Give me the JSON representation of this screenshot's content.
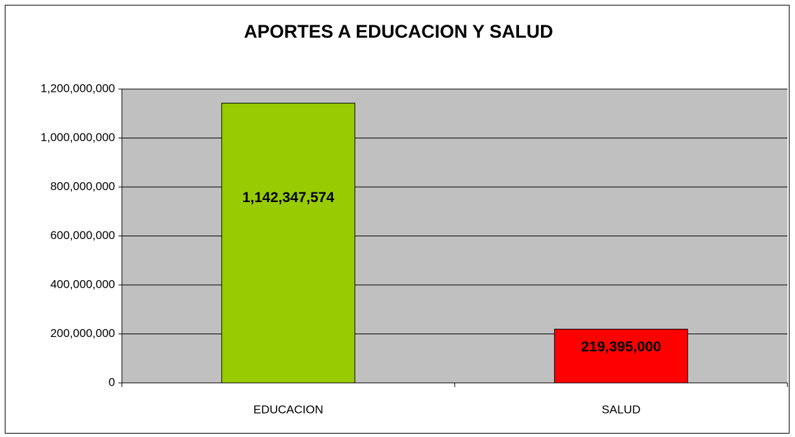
{
  "chart_data": {
    "type": "bar",
    "title": "APORTES A EDUCACION Y SALUD",
    "categories": [
      "EDUCACION",
      "SALUD"
    ],
    "values": [
      1142347574,
      219395000
    ],
    "value_labels": [
      "1,142,347,574",
      "219,395,000"
    ],
    "colors": [
      "#99cc00",
      "#ff0000"
    ],
    "ylim": [
      0,
      1200000000
    ],
    "yticks": [
      0,
      {
        "value": 200000000,
        "label": "200,000,000"
      },
      {
        "value": 400000000,
        "label": "400,000,000"
      },
      {
        "value": 600000000,
        "label": "600,000,000"
      },
      {
        "value": 800000000,
        "label": "800,000,000"
      },
      {
        "value": 1000000000,
        "label": "1,000,000,000"
      },
      {
        "value": 1200000000,
        "label": "1,200,000,000"
      }
    ],
    "grid": true
  }
}
